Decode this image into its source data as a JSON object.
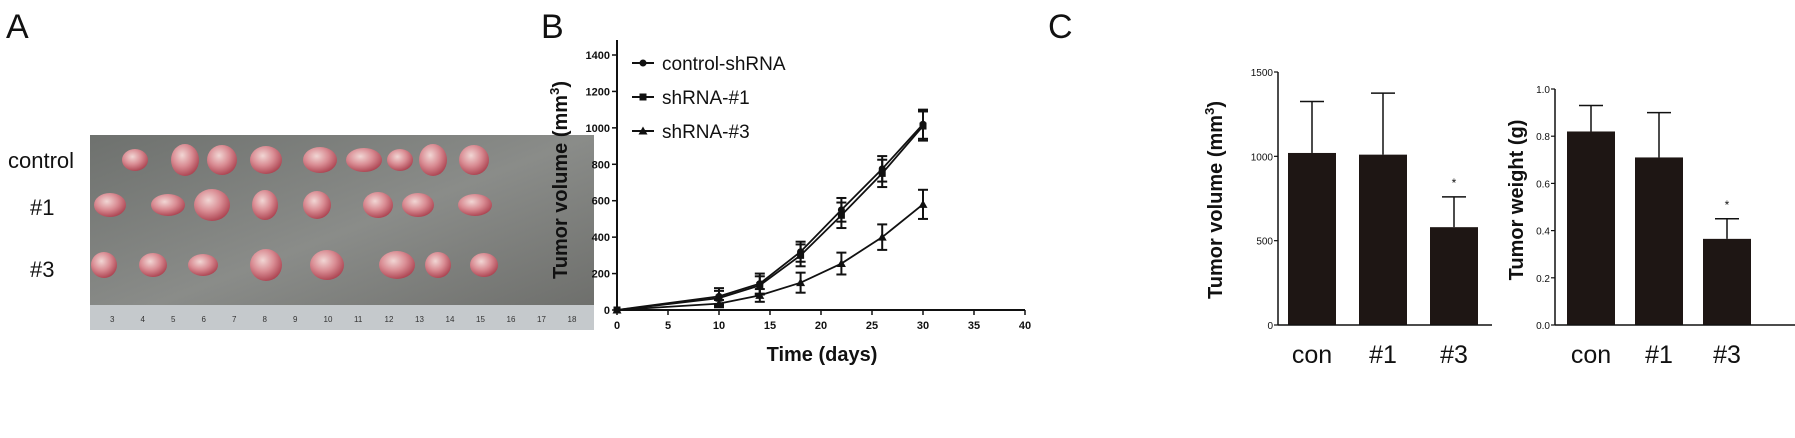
{
  "panel_labels": {
    "a": "A",
    "b": "B",
    "c": "C"
  },
  "photo": {
    "row_labels": [
      "control",
      "#1",
      "#3"
    ],
    "ruler_numbers": [
      "3",
      "4",
      "5",
      "6",
      "7",
      "8",
      "9",
      "10",
      "11",
      "12",
      "13",
      "14",
      "15",
      "16",
      "17",
      "18"
    ]
  },
  "chart_data": [
    {
      "type": "line",
      "panel": "B",
      "xlabel": "Time (days)",
      "ylabel": "Tumor volume (mm3)",
      "xlim": [
        0,
        40
      ],
      "ylim": [
        0,
        1500
      ],
      "xticks": [
        "0",
        "5",
        "10",
        "15",
        "20",
        "25",
        "30",
        "35",
        "40"
      ],
      "yticks": [
        "0",
        "200",
        "400",
        "600",
        "800",
        "1000",
        "1200",
        "1400"
      ],
      "legend_placement": "top-left",
      "x": [
        0,
        10,
        14,
        18,
        22,
        26,
        30
      ],
      "series": [
        {
          "name": "control-shRNA",
          "marker": "circle",
          "values": [
            0,
            75,
            145,
            320,
            550,
            775,
            1020
          ],
          "errors": [
            0,
            45,
            55,
            55,
            65,
            70,
            80
          ]
        },
        {
          "name": "shRNA-#1",
          "marker": "square",
          "values": [
            0,
            65,
            135,
            300,
            520,
            750,
            1010
          ],
          "errors": [
            0,
            40,
            50,
            60,
            70,
            75,
            80
          ]
        },
        {
          "name": "shRNA-#3",
          "marker": "triangle",
          "values": [
            0,
            35,
            80,
            150,
            255,
            400,
            580
          ],
          "errors": [
            0,
            20,
            35,
            55,
            60,
            70,
            80
          ]
        }
      ]
    },
    {
      "type": "bar",
      "panel": "C-volume",
      "ylabel": "Tumor volume (mm3)",
      "categories": [
        "con",
        "#1",
        "#3"
      ],
      "values": [
        1020,
        1010,
        580
      ],
      "error_upper": [
        1325,
        1375,
        760
      ],
      "annotations": [
        "",
        "",
        "*"
      ],
      "ylim": [
        0,
        1500
      ],
      "yticks": [
        "0",
        "500",
        "1000",
        "1500"
      ]
    },
    {
      "type": "bar",
      "panel": "C-weight",
      "ylabel": "Tumor weight (g)",
      "categories": [
        "con",
        "#1",
        "#3"
      ],
      "values": [
        0.82,
        0.71,
        0.365
      ],
      "error_upper": [
        0.93,
        0.9,
        0.45
      ],
      "annotations": [
        "",
        "",
        "*"
      ],
      "ylim": [
        0,
        1.0
      ],
      "yticks": [
        "0.0",
        "0.2",
        "0.4",
        "0.6",
        "0.8",
        "1.0"
      ]
    }
  ],
  "colors": {
    "ink": "#111111",
    "bar": "#1e1614",
    "tray": "#7d7f7c",
    "tumor": "#c9707a"
  }
}
